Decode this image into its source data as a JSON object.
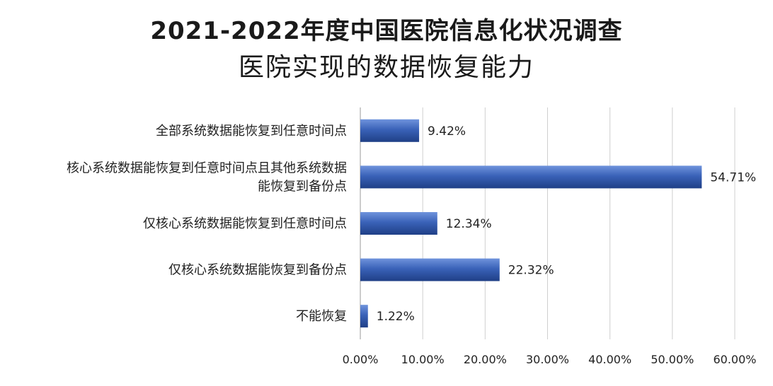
{
  "chart_data": {
    "type": "bar",
    "orientation": "horizontal",
    "title": "2021-2022年度中国医院信息化状况调查",
    "subtitle": "医院实现的数据恢复能力",
    "categories": [
      [
        "全部系统数据能恢复到任意时间点"
      ],
      [
        "核心系统数据能恢复到任意时间点且其他系统数据",
        "能恢复到备份点"
      ],
      [
        "仅核心系统数据能恢复到任意时间点"
      ],
      [
        "仅核心系统数据能恢复到备份点"
      ],
      [
        "不能恢复"
      ]
    ],
    "values": [
      9.42,
      54.71,
      12.34,
      22.32,
      1.22
    ],
    "value_labels": [
      "9.42%",
      "54.71%",
      "12.34%",
      "22.32%",
      "1.22%"
    ],
    "xlim": [
      0,
      60
    ],
    "xticks": [
      0,
      10,
      20,
      30,
      40,
      50,
      60
    ],
    "xtick_labels": [
      "0.00%",
      "10.00%",
      "20.00%",
      "30.00%",
      "40.00%",
      "50.00%",
      "60.00%"
    ],
    "xlabel": "",
    "ylabel": "",
    "grid": true,
    "legend": "none",
    "bar_color": "#3a62b8"
  }
}
